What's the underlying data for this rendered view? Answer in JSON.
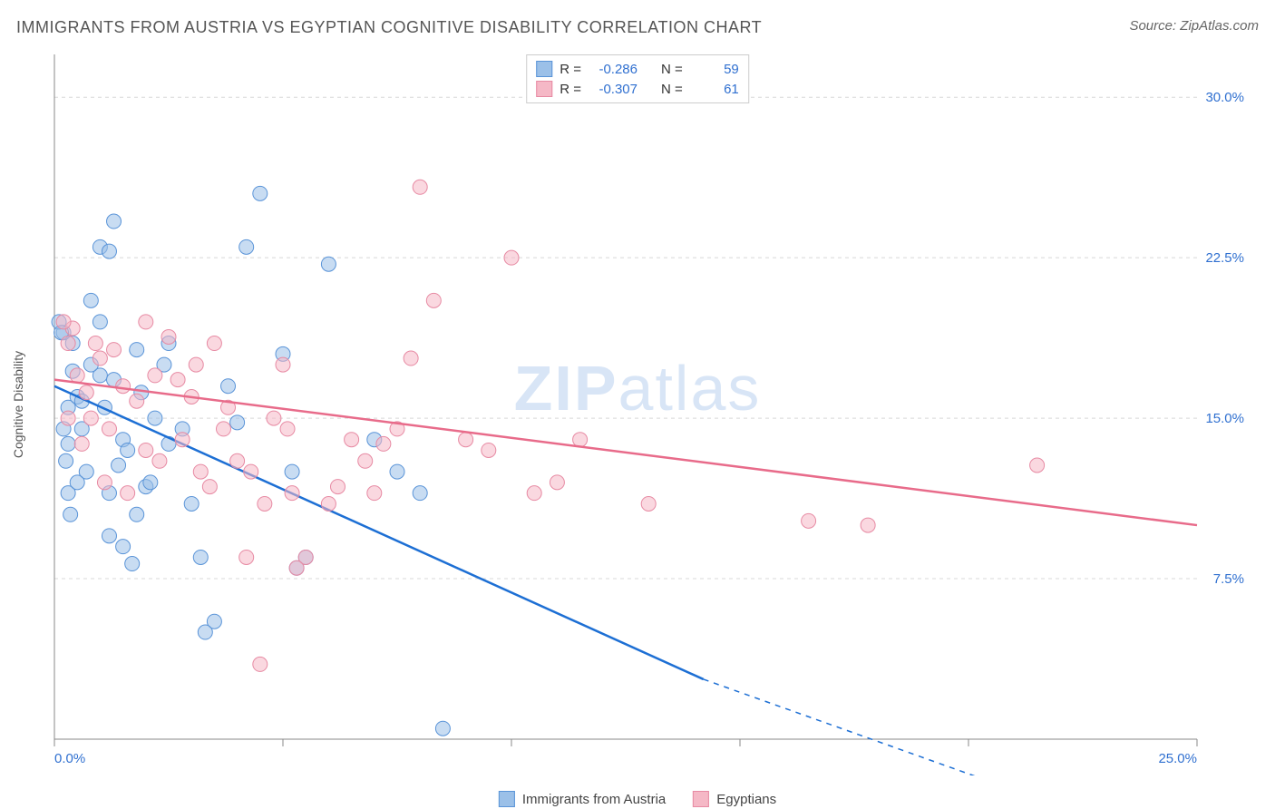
{
  "title": "IMMIGRANTS FROM AUSTRIA VS EGYPTIAN COGNITIVE DISABILITY CORRELATION CHART",
  "source": "Source: ZipAtlas.com",
  "y_axis_label": "Cognitive Disability",
  "watermark_prefix": "ZIP",
  "watermark_suffix": "atlas",
  "chart": {
    "type": "scatter-with-trendlines",
    "background_color": "#ffffff",
    "grid_color": "#d8d8d8",
    "axis_color": "#888888",
    "axis_label_color": "#3070d0",
    "x_range": [
      0,
      25
    ],
    "y_range": [
      0,
      32
    ],
    "x_ticks": [
      0,
      5,
      10,
      15,
      20,
      25
    ],
    "x_tick_labels": {
      "0": "0.0%",
      "25": "25.0%"
    },
    "y_ticks": [
      7.5,
      15.0,
      22.5,
      30.0
    ],
    "y_tick_labels": {
      "7.5": "7.5%",
      "15.0": "15.0%",
      "22.5": "22.5%",
      "30.0": "30.0%"
    },
    "y_grid_lines": [
      0,
      7.5,
      15.0,
      22.5,
      30.0
    ],
    "marker_radius": 8,
    "marker_opacity": 0.55,
    "line_width": 2.5,
    "series": [
      {
        "label": "Immigrants from Austria",
        "fill_color": "#9bc0e8",
        "stroke_color": "#5a94d8",
        "line_color": "#1d6fd4",
        "r_value": "-0.286",
        "n_value": "59",
        "trend": {
          "x1": 0,
          "y1": 16.5,
          "x2": 14.2,
          "y2": 2.8,
          "dash_extend_x2": 20.5,
          "dash_extend_y2": -2
        },
        "points": [
          [
            0.2,
            19.0
          ],
          [
            0.3,
            15.5
          ],
          [
            0.4,
            17.2
          ],
          [
            0.3,
            13.8
          ],
          [
            0.5,
            16.0
          ],
          [
            0.6,
            14.5
          ],
          [
            0.4,
            18.5
          ],
          [
            0.7,
            12.5
          ],
          [
            0.8,
            20.5
          ],
          [
            1.0,
            23.0
          ],
          [
            1.2,
            22.8
          ],
          [
            1.3,
            24.2
          ],
          [
            1.0,
            17.0
          ],
          [
            1.1,
            15.5
          ],
          [
            1.3,
            16.8
          ],
          [
            1.5,
            14.0
          ],
          [
            1.2,
            11.5
          ],
          [
            1.4,
            12.8
          ],
          [
            1.6,
            13.5
          ],
          [
            1.8,
            10.5
          ],
          [
            2.0,
            11.8
          ],
          [
            1.5,
            9.0
          ],
          [
            1.7,
            8.2
          ],
          [
            1.9,
            16.2
          ],
          [
            2.2,
            15.0
          ],
          [
            2.4,
            17.5
          ],
          [
            2.1,
            12.0
          ],
          [
            2.5,
            13.8
          ],
          [
            2.8,
            14.5
          ],
          [
            3.0,
            11.0
          ],
          [
            3.2,
            8.5
          ],
          [
            3.5,
            5.5
          ],
          [
            3.3,
            5.0
          ],
          [
            3.8,
            16.5
          ],
          [
            4.0,
            14.8
          ],
          [
            4.2,
            23.0
          ],
          [
            4.5,
            25.5
          ],
          [
            5.0,
            18.0
          ],
          [
            5.2,
            12.5
          ],
          [
            5.5,
            8.5
          ],
          [
            5.3,
            8.0
          ],
          [
            6.0,
            22.2
          ],
          [
            7.0,
            14.0
          ],
          [
            7.5,
            12.5
          ],
          [
            8.0,
            11.5
          ],
          [
            8.5,
            0.5
          ],
          [
            0.1,
            19.5
          ],
          [
            0.15,
            19.0
          ],
          [
            0.2,
            14.5
          ],
          [
            0.25,
            13.0
          ],
          [
            0.3,
            11.5
          ],
          [
            0.35,
            10.5
          ],
          [
            0.5,
            12.0
          ],
          [
            0.6,
            15.8
          ],
          [
            0.8,
            17.5
          ],
          [
            1.0,
            19.5
          ],
          [
            1.2,
            9.5
          ],
          [
            1.8,
            18.2
          ],
          [
            2.5,
            18.5
          ]
        ]
      },
      {
        "label": "Egyptians",
        "fill_color": "#f5b8c6",
        "stroke_color": "#e78aa3",
        "line_color": "#e86b8a",
        "r_value": "-0.307",
        "n_value": "61",
        "trend": {
          "x1": 0,
          "y1": 16.8,
          "x2": 25,
          "y2": 10.0
        },
        "points": [
          [
            0.3,
            18.5
          ],
          [
            0.5,
            17.0
          ],
          [
            0.7,
            16.2
          ],
          [
            0.4,
            19.2
          ],
          [
            0.8,
            15.0
          ],
          [
            1.0,
            17.8
          ],
          [
            1.2,
            14.5
          ],
          [
            1.5,
            16.5
          ],
          [
            1.3,
            18.2
          ],
          [
            1.8,
            15.8
          ],
          [
            2.0,
            13.5
          ],
          [
            2.2,
            17.0
          ],
          [
            2.5,
            18.8
          ],
          [
            2.8,
            14.0
          ],
          [
            3.0,
            16.0
          ],
          [
            3.2,
            12.5
          ],
          [
            3.5,
            18.5
          ],
          [
            3.8,
            15.5
          ],
          [
            4.0,
            13.0
          ],
          [
            4.2,
            8.5
          ],
          [
            4.5,
            3.5
          ],
          [
            4.8,
            15.0
          ],
          [
            5.0,
            17.5
          ],
          [
            5.2,
            11.5
          ],
          [
            5.5,
            8.5
          ],
          [
            5.3,
            8.0
          ],
          [
            6.0,
            11.0
          ],
          [
            6.5,
            14.0
          ],
          [
            7.0,
            11.5
          ],
          [
            7.2,
            13.8
          ],
          [
            7.8,
            17.8
          ],
          [
            8.0,
            25.8
          ],
          [
            8.3,
            20.5
          ],
          [
            9.0,
            14.0
          ],
          [
            9.5,
            13.5
          ],
          [
            10.0,
            22.5
          ],
          [
            10.5,
            11.5
          ],
          [
            11.0,
            12.0
          ],
          [
            11.5,
            14.0
          ],
          [
            13.0,
            11.0
          ],
          [
            16.5,
            10.2
          ],
          [
            17.8,
            10.0
          ],
          [
            21.5,
            12.8
          ],
          [
            0.2,
            19.5
          ],
          [
            0.3,
            15.0
          ],
          [
            0.6,
            13.8
          ],
          [
            0.9,
            18.5
          ],
          [
            1.1,
            12.0
          ],
          [
            1.6,
            11.5
          ],
          [
            2.0,
            19.5
          ],
          [
            2.3,
            13.0
          ],
          [
            2.7,
            16.8
          ],
          [
            3.1,
            17.5
          ],
          [
            3.4,
            11.8
          ],
          [
            3.7,
            14.5
          ],
          [
            4.3,
            12.5
          ],
          [
            4.6,
            11.0
          ],
          [
            5.1,
            14.5
          ],
          [
            6.2,
            11.8
          ],
          [
            6.8,
            13.0
          ],
          [
            7.5,
            14.5
          ]
        ]
      }
    ]
  },
  "legend_top_labels": {
    "r": "R =",
    "n": "N ="
  },
  "legend_bottom": [
    {
      "label": "Immigrants from Austria",
      "fill": "#9bc0e8",
      "stroke": "#5a94d8"
    },
    {
      "label": "Egyptians",
      "fill": "#f5b8c6",
      "stroke": "#e78aa3"
    }
  ]
}
